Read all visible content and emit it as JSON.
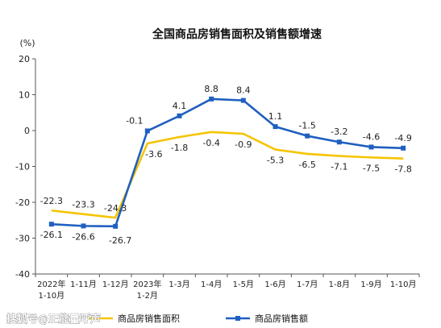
{
  "chart_data": {
    "type": "line",
    "title": "全国商品房销售面积及销售额增速",
    "ylabel": "(%)",
    "ylim": [
      -40,
      20
    ],
    "yticks": [
      20,
      10,
      0,
      -10,
      -20,
      -30,
      -40
    ],
    "categories": [
      [
        "2022年",
        "1-10月"
      ],
      [
        "1-11月"
      ],
      [
        "1-12月"
      ],
      [
        "2023年",
        "1-2月"
      ],
      [
        "1-3月"
      ],
      [
        "1-4月"
      ],
      [
        "1-5月"
      ],
      [
        "1-6月"
      ],
      [
        "1-7月"
      ],
      [
        "1-8月"
      ],
      [
        "1-9月"
      ],
      [
        "1-10月"
      ]
    ],
    "series": [
      {
        "name": "商品房销售面积",
        "color": "#F5C400",
        "marker": "none",
        "values": [
          -22.3,
          -23.3,
          -24.3,
          -3.6,
          -1.8,
          -0.4,
          -0.9,
          -5.3,
          -6.5,
          -7.1,
          -7.5,
          -7.8
        ],
        "labels": [
          "-22.3",
          "-23.3",
          "-24.3",
          "-3.6",
          "-1.8",
          "-0.4",
          "-0.9",
          "-5.3",
          "-6.5",
          "-7.1",
          "-7.5",
          "-7.8"
        ]
      },
      {
        "name": "商品房销售额",
        "color": "#1F5FC0",
        "marker": "square",
        "values": [
          -26.1,
          -26.6,
          -26.7,
          -0.1,
          4.1,
          8.8,
          8.4,
          1.1,
          -1.5,
          -3.2,
          -4.6,
          -4.9
        ],
        "labels": [
          "-26.1",
          "-26.6",
          "-26.7",
          "-0.1",
          "4.1",
          "8.8",
          "8.4",
          "1.1",
          "-1.5",
          "-3.2",
          "-4.6",
          "-4.9"
        ]
      }
    ],
    "legend_position": "bottom",
    "grid": false
  },
  "watermark": "搜狐号@正能量呼声"
}
